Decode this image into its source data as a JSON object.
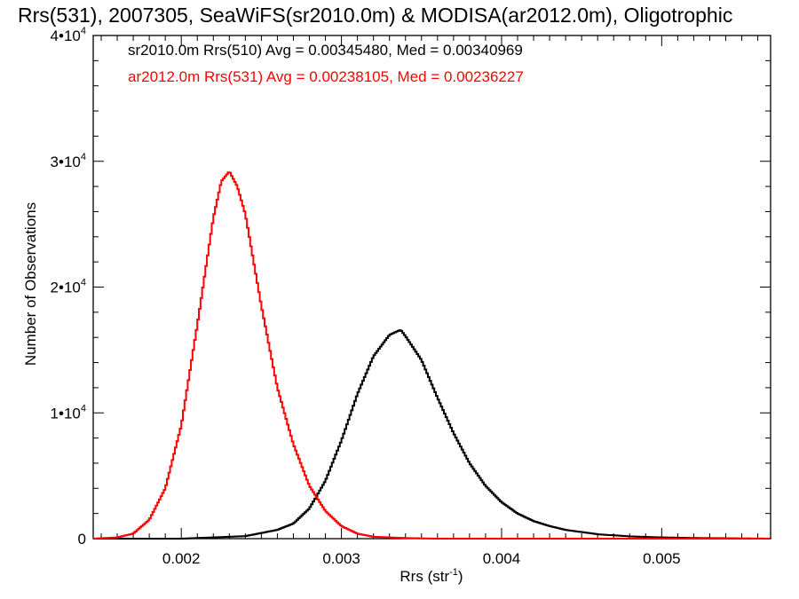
{
  "chart_data": {
    "type": "line",
    "title": "Rrs(531), 2007305, SeaWiFS(sr2010.0m) & MODISA(ar2012.0m), Oligotrophic",
    "xlabel": {
      "base": "Rrs (str",
      "sup": "-1",
      "close": ")"
    },
    "ylabel": "Number of Observations",
    "xlim": [
      0.00145,
      0.00568
    ],
    "ylim": [
      0,
      40000
    ],
    "grid": false,
    "x_ticks": [
      {
        "value": 0.002,
        "label": "0.002"
      },
      {
        "value": 0.003,
        "label": "0.003"
      },
      {
        "value": 0.004,
        "label": "0.004"
      },
      {
        "value": 0.005,
        "label": "0.005"
      }
    ],
    "y_ticks": [
      {
        "value": 0,
        "label": "0"
      },
      {
        "value": 10000,
        "label": "1•10",
        "sup": "4"
      },
      {
        "value": 20000,
        "label": "2•10",
        "sup": "4"
      },
      {
        "value": 30000,
        "label": "3•10",
        "sup": "4"
      },
      {
        "value": 40000,
        "label": "4•10",
        "sup": "4"
      }
    ],
    "legend_placement": "top-left",
    "series": [
      {
        "legend": "sr2010.0m Rrs(510) Avg = 0.00345480, Med = 0.00340969",
        "color": "#000000",
        "x": [
          0.00145,
          0.002,
          0.0024,
          0.0026,
          0.0027,
          0.0028,
          0.0029,
          0.003,
          0.0031,
          0.0032,
          0.0033,
          0.00337,
          0.0034,
          0.0035,
          0.0036,
          0.0037,
          0.0038,
          0.0039,
          0.004,
          0.0041,
          0.0042,
          0.0043,
          0.0044,
          0.0046,
          0.0048,
          0.005,
          0.0052,
          0.00568
        ],
        "y": [
          0,
          0,
          200,
          700,
          1200,
          2400,
          4600,
          7800,
          11500,
          14500,
          16200,
          16600,
          16100,
          14200,
          11200,
          8400,
          6000,
          4200,
          2900,
          2000,
          1400,
          1000,
          700,
          350,
          180,
          100,
          50,
          0
        ]
      },
      {
        "legend": "ar2012.0m Rrs(531) Avg = 0.00238105, Med = 0.00236227",
        "color": "#ff0000",
        "x": [
          0.00145,
          0.0016,
          0.0017,
          0.0018,
          0.0019,
          0.002,
          0.0021,
          0.0022,
          0.00225,
          0.0023,
          0.00235,
          0.0024,
          0.0025,
          0.0026,
          0.0027,
          0.0028,
          0.0029,
          0.003,
          0.0031,
          0.0032,
          0.0034,
          0.0036,
          0.00568
        ],
        "y": [
          0,
          100,
          400,
          1500,
          4000,
          9000,
          17000,
          25500,
          28400,
          29200,
          28000,
          25800,
          18500,
          12000,
          7500,
          4200,
          2200,
          1000,
          400,
          150,
          50,
          0,
          0
        ]
      }
    ]
  }
}
